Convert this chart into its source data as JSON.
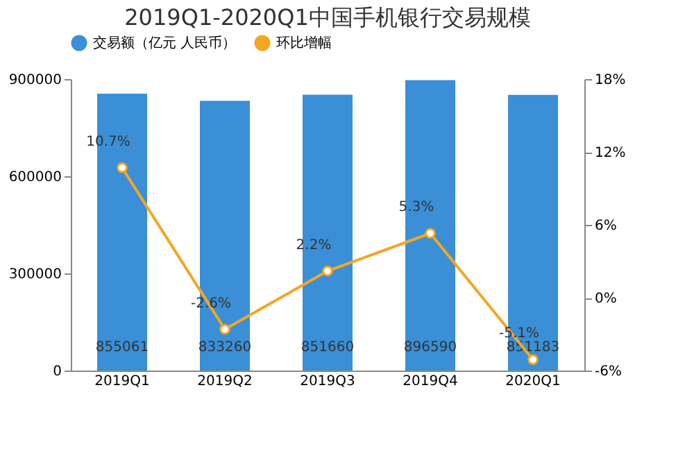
{
  "chart_data": {
    "type": "bar",
    "title": "2019Q1-2020Q1中国手机银行交易规模",
    "categories": [
      "2019Q1",
      "2019Q2",
      "2019Q3",
      "2019Q4",
      "2020Q1"
    ],
    "series": [
      {
        "name": "交易额（亿元 人民币）",
        "color": "#3a8fd6",
        "values": [
          855061,
          833260,
          851660,
          896590,
          851183
        ],
        "value_labels": [
          "855061",
          "833260",
          "851660",
          "896590",
          "851183"
        ]
      },
      {
        "name": "环比增幅",
        "type": "line",
        "axis": "y2",
        "color": "#f5a623",
        "values": [
          10.7,
          -2.6,
          2.2,
          5.3,
          -5.1
        ],
        "value_labels": [
          "10.7%",
          "-2.6%",
          "2.2%",
          "5.3%",
          "-5.1%"
        ]
      }
    ],
    "ylim": [
      0,
      900000
    ],
    "yticks": [
      0,
      300000,
      600000,
      900000
    ],
    "y2lim": [
      -6,
      18
    ],
    "y2ticks": [
      {
        "value": -6,
        "label": "-6%"
      },
      {
        "value": 0,
        "label": "0%"
      },
      {
        "value": 6,
        "label": "6%"
      },
      {
        "value": 12,
        "label": "12%"
      },
      {
        "value": 18,
        "label": "18%"
      }
    ],
    "legend": "top",
    "grid": false,
    "marker": "circle",
    "line_style": "solid"
  }
}
